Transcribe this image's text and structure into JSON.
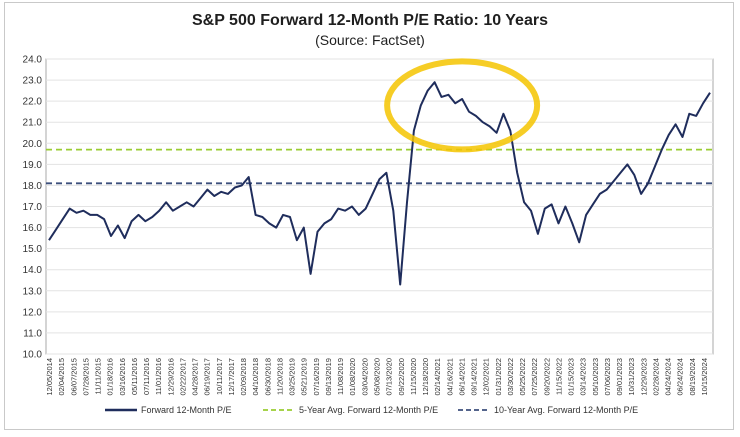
{
  "chart_data": {
    "type": "line",
    "title": "S&P 500 Forward 12-Month P/E Ratio: 10 Years",
    "subtitle": "(Source: FactSet)",
    "xlabel": "",
    "ylabel": "",
    "ylim": [
      10.0,
      24.0
    ],
    "y_ticks": [
      "10.0",
      "11.0",
      "12.0",
      "13.0",
      "14.0",
      "15.0",
      "16.0",
      "17.0",
      "18.0",
      "19.0",
      "20.0",
      "21.0",
      "22.0",
      "23.0",
      "24.0"
    ],
    "x_ticks": [
      "12/05/2014",
      "02/04/2015",
      "06/07/2015",
      "07/28/2015",
      "11/11/2015",
      "01/18/2016",
      "03/16/2016",
      "05/11/2016",
      "07/11/2016",
      "11/01/2016",
      "12/29/2016",
      "02/22/2017",
      "04/28/2017",
      "06/19/2017",
      "10/11/2017",
      "12/17/2017",
      "02/09/2018",
      "04/10/2018",
      "06/30/2018",
      "11/20/2018",
      "03/25/2019",
      "05/21/2019",
      "07/16/2019",
      "09/13/2019",
      "11/08/2019",
      "01/08/2020",
      "03/04/2020",
      "05/08/2020",
      "07/13/2020",
      "09/22/2020",
      "11/15/2020",
      "12/18/2020",
      "02/14/2021",
      "04/16/2021",
      "06/14/2021",
      "09/14/2021",
      "12/02/2021",
      "01/31/2022",
      "03/30/2022",
      "05/25/2022",
      "07/25/2022",
      "09/20/2022",
      "11/15/2022",
      "01/15/2023",
      "03/14/2023",
      "05/10/2023",
      "07/06/2023",
      "09/01/2023",
      "10/31/2023",
      "12/29/2023",
      "02/28/2024",
      "04/24/2024",
      "06/24/2024",
      "08/19/2024",
      "10/15/2024"
    ],
    "series": [
      {
        "name": "Forward 12-Month P/E",
        "color": "#1f2d5c",
        "values": [
          15.4,
          15.9,
          16.4,
          16.9,
          16.7,
          16.8,
          16.6,
          16.6,
          16.4,
          15.6,
          16.1,
          15.5,
          16.3,
          16.6,
          16.3,
          16.5,
          16.8,
          17.2,
          16.8,
          17.0,
          17.2,
          17.0,
          17.4,
          17.8,
          17.5,
          17.7,
          17.6,
          17.9,
          18.0,
          18.4,
          16.6,
          16.5,
          16.2,
          16.0,
          16.6,
          16.5,
          15.4,
          16.0,
          13.8,
          15.8,
          16.2,
          16.4,
          16.9,
          16.8,
          17.0,
          16.6,
          16.9,
          17.6,
          18.3,
          18.6,
          16.8,
          13.3,
          17.2,
          20.6,
          21.8,
          22.5,
          22.9,
          22.2,
          22.3,
          21.9,
          22.1,
          21.5,
          21.3,
          21.0,
          20.8,
          20.5,
          21.4,
          20.6,
          18.6,
          17.2,
          16.8,
          15.7,
          16.9,
          17.1,
          16.2,
          17.0,
          16.2,
          15.3,
          16.6,
          17.1,
          17.6,
          17.8,
          18.2,
          18.6,
          19.0,
          18.5,
          17.6,
          18.1,
          18.9,
          19.7,
          20.4,
          20.9,
          20.3,
          21.4,
          21.3,
          21.9,
          22.4
        ]
      },
      {
        "name": "5-Year Avg. Forward 12-Month P/E",
        "color": "#9acd32",
        "value": 19.7
      },
      {
        "name": "10-Year Avg. Forward 12-Month P/E",
        "color": "#3c4f7c",
        "value": 18.1
      }
    ],
    "legend": [
      "Forward 12-Month P/E",
      "5-Year Avg. Forward 12-Month P/E",
      "10-Year Avg. Forward 12-Month P/E"
    ],
    "legend_position": "bottom",
    "annotation": "yellow highlighter circle around 2020-2021 peak",
    "highlight_color": "#f5c400",
    "grid": true
  }
}
